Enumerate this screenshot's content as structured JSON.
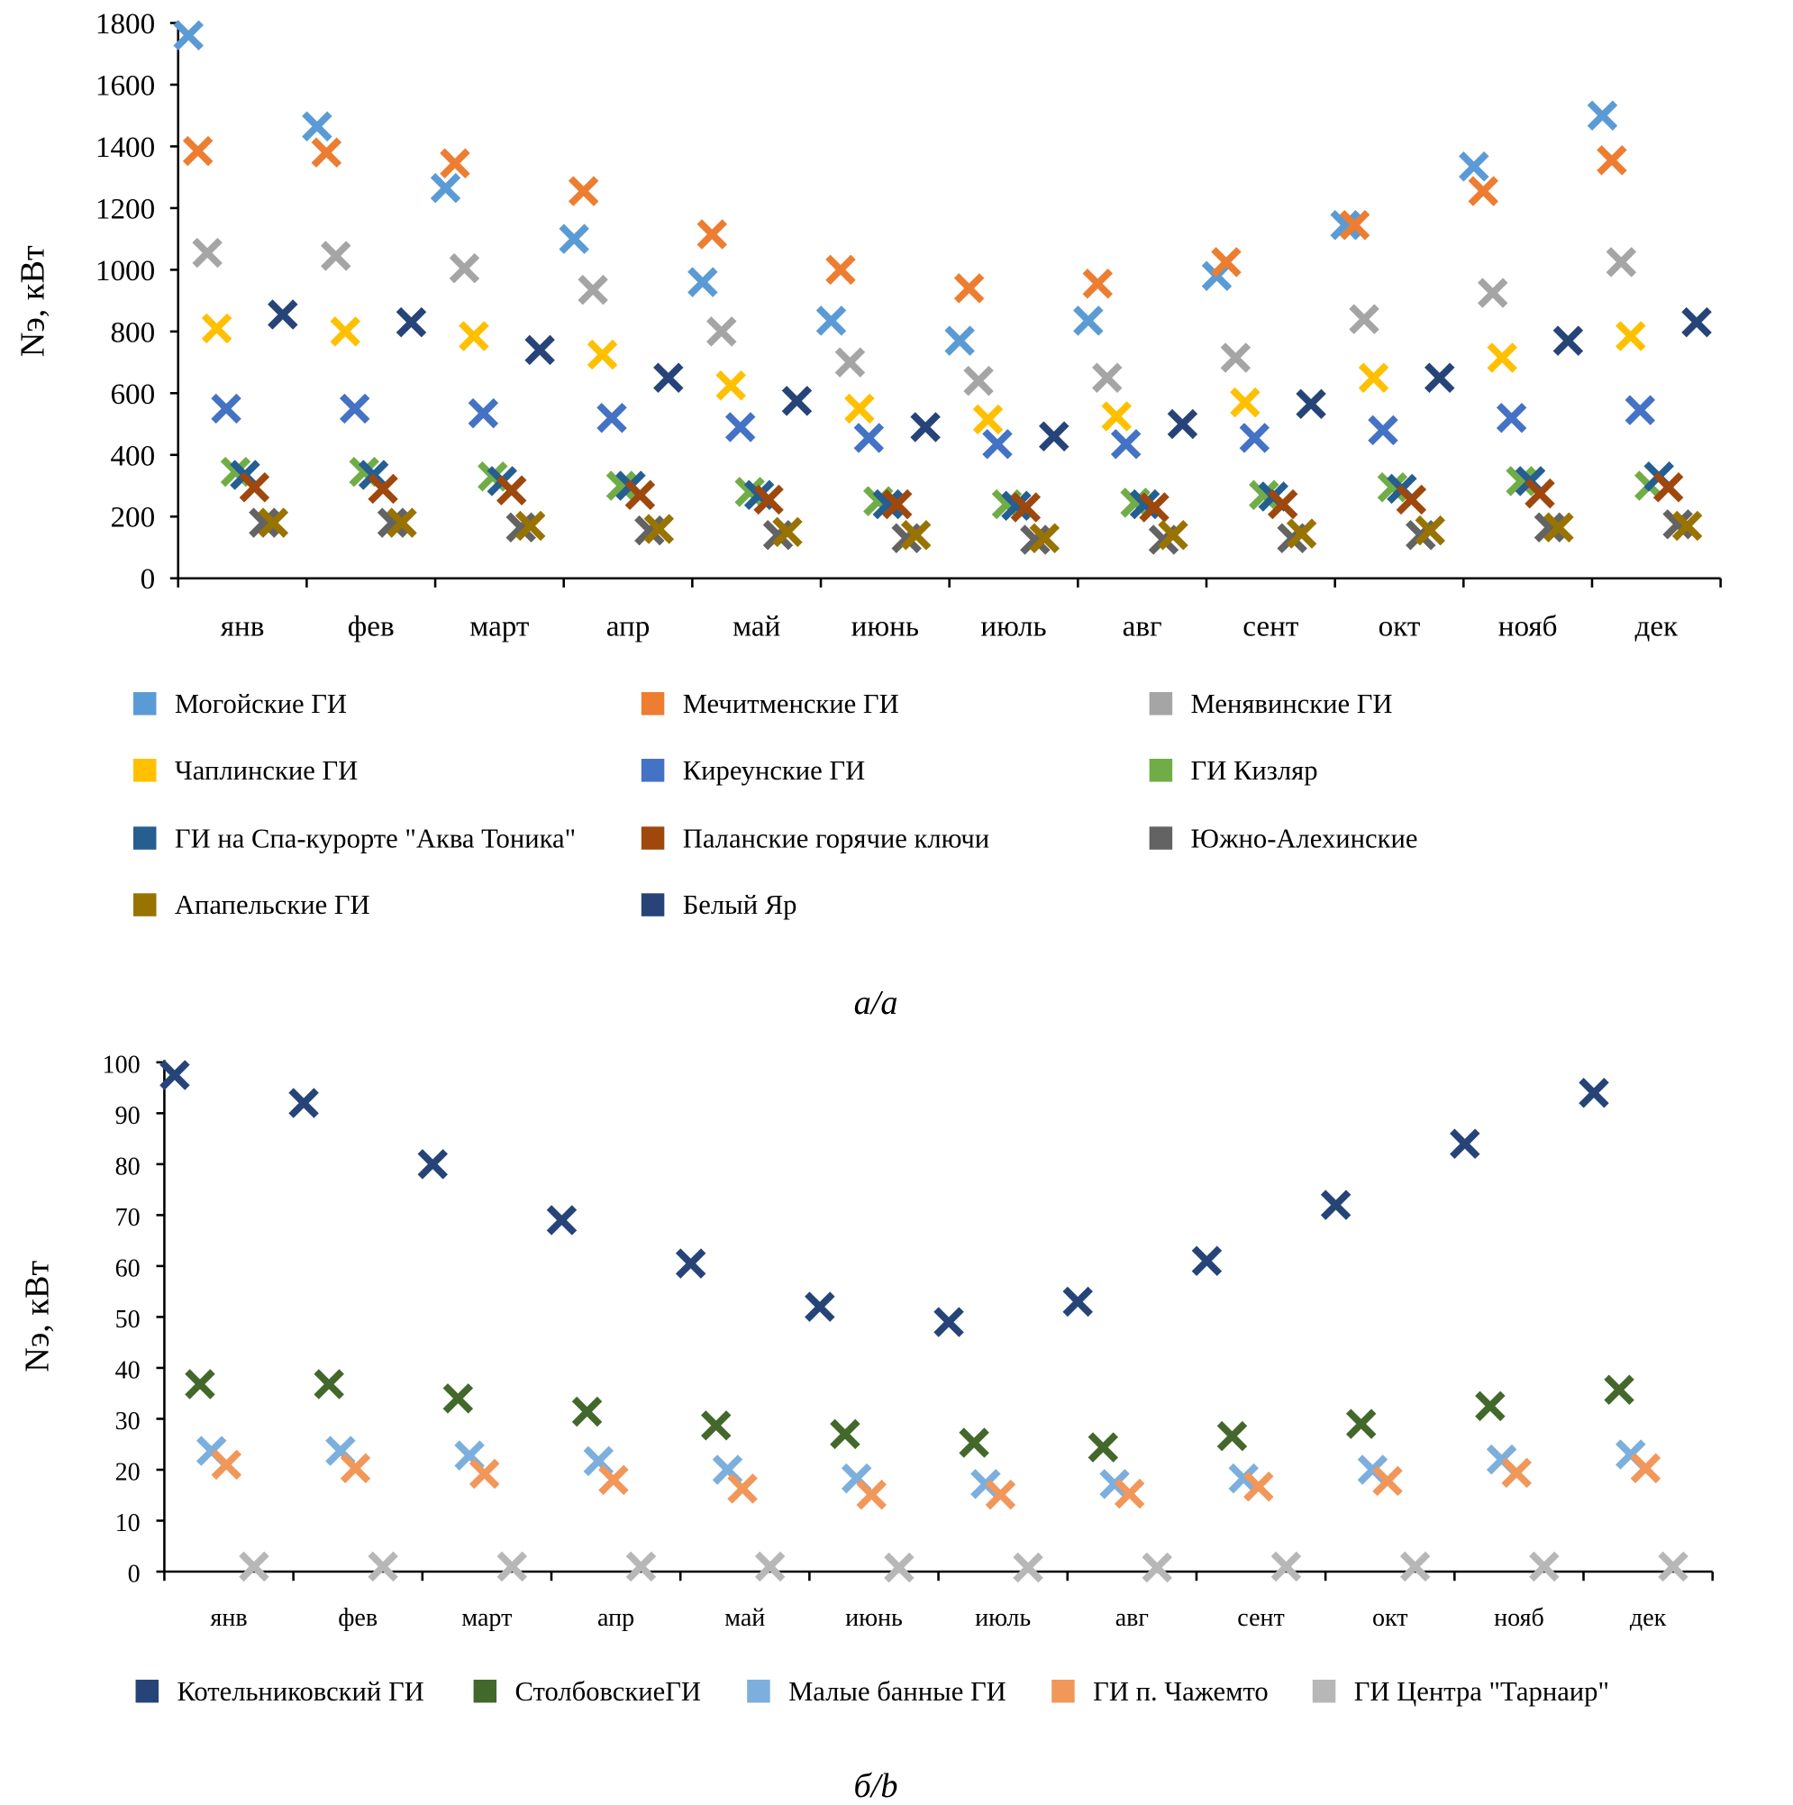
{
  "chart_data": [
    {
      "type": "scatter",
      "caption": "а/а",
      "ylabel": "Nэ, кВт",
      "ylim": [
        0,
        1800
      ],
      "yticks": [
        0,
        200,
        400,
        600,
        800,
        1000,
        1200,
        1400,
        1600,
        1800
      ],
      "categories": [
        "янв",
        "фев",
        "март",
        "апр",
        "май",
        "июнь",
        "июль",
        "авг",
        "сент",
        "окт",
        "нояб",
        "дек"
      ],
      "marker": "x",
      "grid": false,
      "legend_position": "bottom",
      "series": [
        {
          "name": "Могойские ГИ",
          "color": "#5B9BD5",
          "values": [
            1760,
            1465,
            1265,
            1100,
            960,
            835,
            770,
            835,
            980,
            1145,
            1335,
            1500
          ]
        },
        {
          "name": "Мечитменские ГИ",
          "color": "#ED7D31",
          "values": [
            1385,
            1380,
            1345,
            1255,
            1115,
            1000,
            940,
            955,
            1025,
            1145,
            1255,
            1355
          ]
        },
        {
          "name": "Менявинские ГИ",
          "color": "#A5A5A5",
          "values": [
            1055,
            1045,
            1005,
            935,
            800,
            700,
            640,
            650,
            715,
            840,
            925,
            1025
          ]
        },
        {
          "name": "Чаплинские ГИ",
          "color": "#FFC000",
          "values": [
            810,
            800,
            785,
            725,
            625,
            550,
            515,
            525,
            570,
            650,
            715,
            785
          ]
        },
        {
          "name": "Киреунские ГИ",
          "color": "#4472C4",
          "values": [
            550,
            550,
            535,
            520,
            490,
            455,
            435,
            435,
            455,
            480,
            520,
            545
          ]
        },
        {
          "name": "ГИ Кизляр",
          "color": "#70AD47",
          "values": [
            345,
            345,
            330,
            300,
            280,
            250,
            240,
            245,
            270,
            295,
            315,
            300
          ]
        },
        {
          "name": "ГИ на Спа-курорте \"Аква Тоника\"",
          "color": "#255E91",
          "values": [
            335,
            335,
            315,
            300,
            270,
            240,
            235,
            240,
            265,
            290,
            315,
            330
          ]
        },
        {
          "name": "Паланские горячие ключи",
          "color": "#9E480E",
          "values": [
            295,
            290,
            285,
            270,
            255,
            240,
            230,
            230,
            240,
            255,
            275,
            295
          ]
        },
        {
          "name": "Южно-Алехинские",
          "color": "#636363",
          "values": [
            180,
            180,
            165,
            155,
            140,
            130,
            125,
            125,
            130,
            140,
            165,
            175
          ]
        },
        {
          "name": "Апапельские ГИ",
          "color": "#997300",
          "values": [
            180,
            180,
            170,
            160,
            150,
            140,
            130,
            140,
            145,
            155,
            165,
            170
          ]
        },
        {
          "name": "Белый Яр",
          "color": "#264478",
          "values": [
            855,
            830,
            740,
            650,
            575,
            490,
            460,
            500,
            565,
            650,
            770,
            830
          ]
        }
      ]
    },
    {
      "type": "scatter",
      "caption": "б/b",
      "ylabel": "Nэ, кВт",
      "ylim": [
        0,
        100
      ],
      "yticks": [
        0,
        10,
        20,
        30,
        40,
        50,
        60,
        70,
        80,
        90,
        100
      ],
      "categories": [
        "янв",
        "фев",
        "март",
        "апр",
        "май",
        "июнь",
        "июль",
        "авг",
        "сент",
        "окт",
        "нояб",
        "дек"
      ],
      "marker": "x",
      "grid": false,
      "legend_position": "bottom",
      "series": [
        {
          "name": "Котельниковский ГИ",
          "color": "#264478",
          "values": [
            97.5,
            92,
            80,
            69,
            60.5,
            52,
            49,
            53,
            61,
            72,
            84,
            94
          ]
        },
        {
          "name": "СтолбовскиеГИ",
          "color": "#43682B",
          "values": [
            36.8,
            36.8,
            34,
            31.4,
            28.7,
            27,
            25.3,
            24.4,
            26.6,
            29,
            32.5,
            35.7
          ]
        },
        {
          "name": "Малые банные ГИ",
          "color": "#7CAFDD",
          "values": [
            23.7,
            23.7,
            22.8,
            21.7,
            20,
            18.3,
            17.2,
            17.2,
            18.3,
            20,
            22,
            23
          ]
        },
        {
          "name": "ГИ п. Чажемто",
          "color": "#F1975A",
          "values": [
            21,
            20.3,
            19.2,
            18,
            16.3,
            15.1,
            15.1,
            15.3,
            16.7,
            17.8,
            19.4,
            20.3
          ]
        },
        {
          "name": "ГИ Центра \"Тарнаир\"",
          "color": "#B7B7B7",
          "values": [
            1,
            1,
            1,
            1,
            1,
            0.8,
            0.8,
            0.8,
            1,
            1,
            1,
            1
          ]
        }
      ]
    }
  ]
}
